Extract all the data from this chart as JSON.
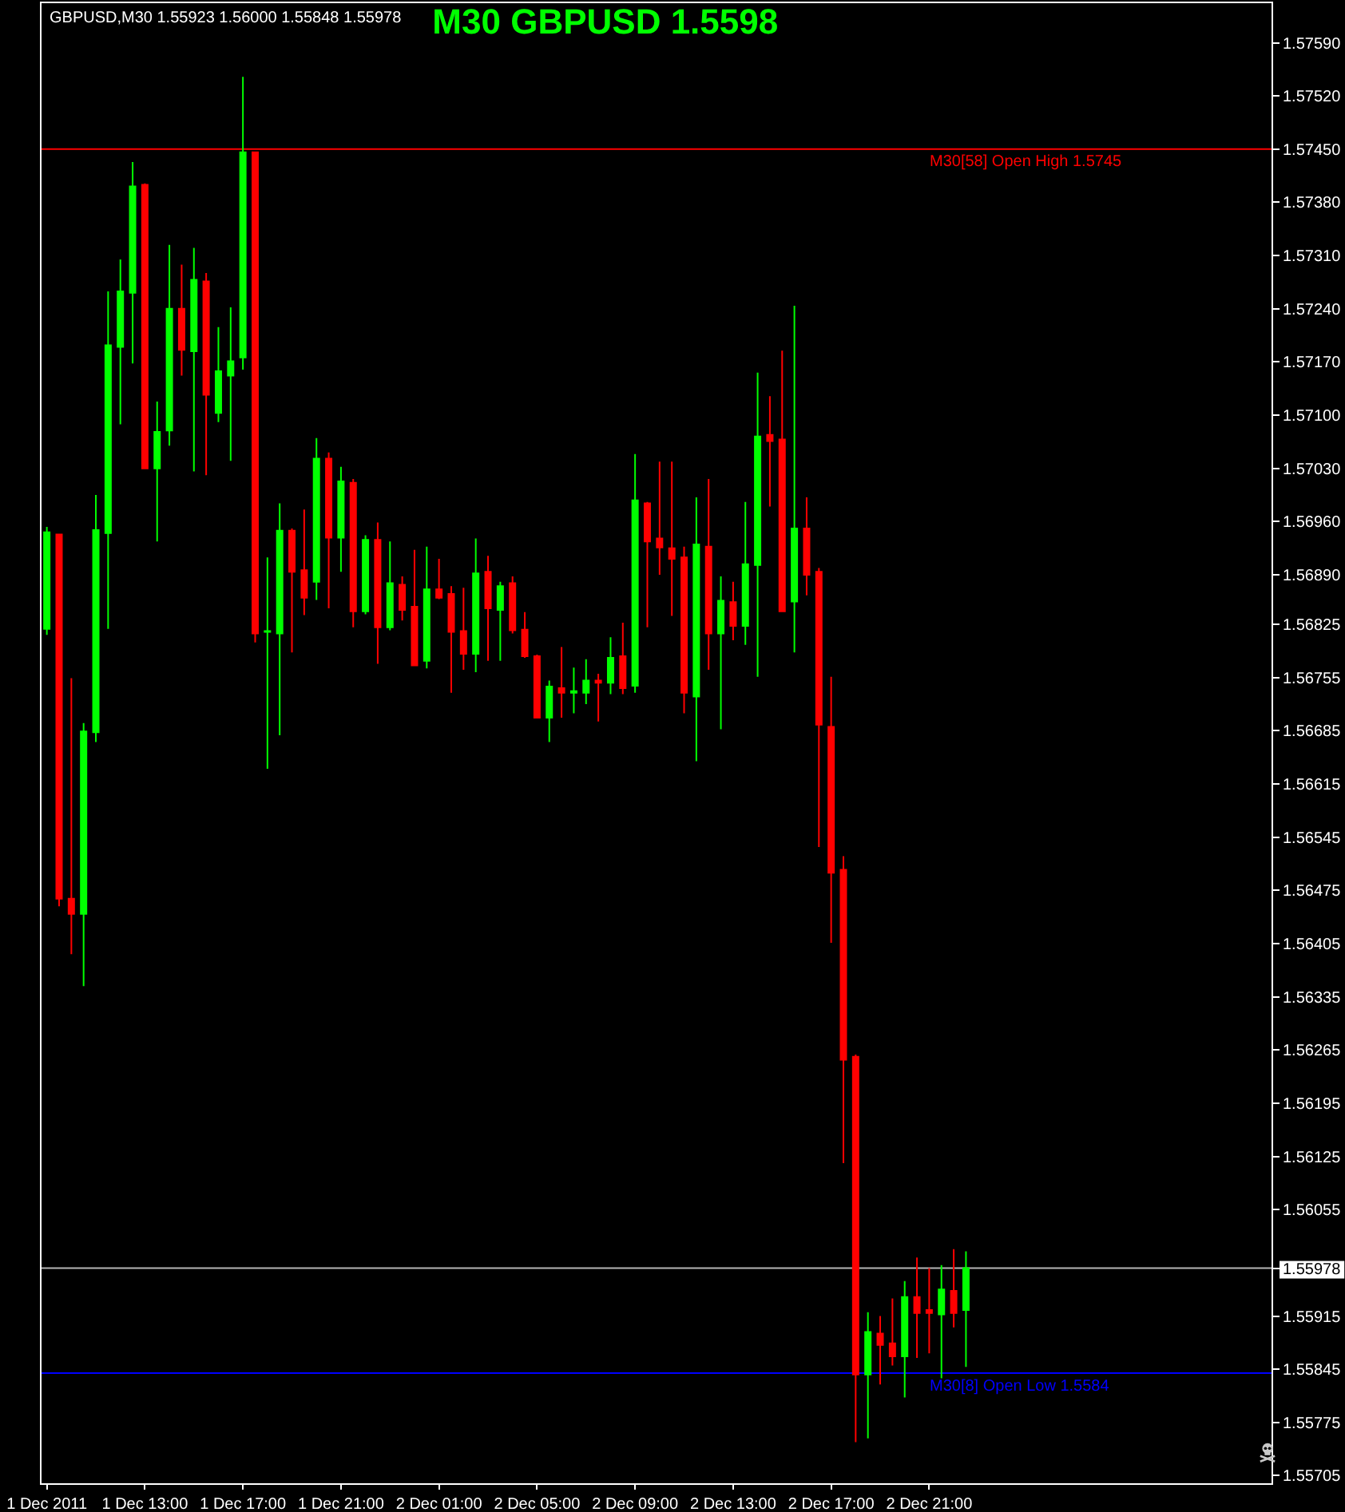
{
  "chart_data": {
    "type": "candlestick",
    "title": "M30 GBPUSD 1.5598",
    "annotations": [
      "GBPUSD,M30 1.55923 1.56000 1.55848 1.55978"
    ],
    "x": [
      "2011-12-01T09:00",
      "2011-12-01T09:30",
      "2011-12-01T10:00",
      "2011-12-01T10:30",
      "2011-12-01T11:00",
      "2011-12-01T11:30",
      "2011-12-01T12:00",
      "2011-12-01T12:30",
      "2011-12-01T13:00",
      "2011-12-01T13:30",
      "2011-12-01T14:00",
      "2011-12-01T14:30",
      "2011-12-01T15:00",
      "2011-12-01T15:30",
      "2011-12-01T16:00",
      "2011-12-01T16:30",
      "2011-12-01T17:00",
      "2011-12-01T17:30",
      "2011-12-01T18:00",
      "2011-12-01T18:30",
      "2011-12-01T19:00",
      "2011-12-01T19:30",
      "2011-12-01T20:00",
      "2011-12-01T20:30",
      "2011-12-01T21:00",
      "2011-12-01T21:30",
      "2011-12-01T22:00",
      "2011-12-01T22:30",
      "2011-12-01T23:00",
      "2011-12-01T23:30",
      "2011-12-02T00:00",
      "2011-12-02T00:30",
      "2011-12-02T01:00",
      "2011-12-02T01:30",
      "2011-12-02T02:00",
      "2011-12-02T02:30",
      "2011-12-02T03:00",
      "2011-12-02T03:30",
      "2011-12-02T04:00",
      "2011-12-02T04:30",
      "2011-12-02T05:00",
      "2011-12-02T05:30",
      "2011-12-02T06:00",
      "2011-12-02T06:30",
      "2011-12-02T07:00",
      "2011-12-02T07:30",
      "2011-12-02T08:00",
      "2011-12-02T08:30",
      "2011-12-02T09:00",
      "2011-12-02T09:30",
      "2011-12-02T10:00",
      "2011-12-02T10:30",
      "2011-12-02T11:00",
      "2011-12-02T11:30",
      "2011-12-02T12:00",
      "2011-12-02T12:30",
      "2011-12-02T13:00",
      "2011-12-02T13:30",
      "2011-12-02T14:00",
      "2011-12-02T14:30",
      "2011-12-02T15:00",
      "2011-12-02T15:30",
      "2011-12-02T16:00",
      "2011-12-02T16:30",
      "2011-12-02T17:00",
      "2011-12-02T17:30",
      "2011-12-02T18:00",
      "2011-12-02T18:30",
      "2011-12-02T19:00",
      "2011-12-02T19:30",
      "2011-12-02T20:00",
      "2011-12-02T20:30",
      "2011-12-02T21:00",
      "2011-12-02T21:30",
      "2011-12-02T22:00",
      "2011-12-02T22:30"
    ],
    "ohlc": [
      [
        1.56819,
        1.56953,
        1.56811,
        1.56946
      ],
      [
        1.56943,
        1.56943,
        1.56454,
        1.56464
      ],
      [
        1.56464,
        1.56754,
        1.56391,
        1.56444
      ],
      [
        1.56444,
        1.56695,
        1.56349,
        1.56684
      ],
      [
        1.56683,
        1.56995,
        1.5667,
        1.56949
      ],
      [
        1.56945,
        1.57263,
        1.56819,
        1.57192
      ],
      [
        1.5719,
        1.57305,
        1.57088,
        1.57263
      ],
      [
        1.57261,
        1.57433,
        1.57168,
        1.57401
      ],
      [
        1.57403,
        1.57405,
        1.57029,
        1.5703
      ],
      [
        1.5703,
        1.57118,
        1.56934,
        1.57078
      ],
      [
        1.5708,
        1.57324,
        1.5706,
        1.5724
      ],
      [
        1.5724,
        1.57298,
        1.57152,
        1.57186
      ],
      [
        1.57184,
        1.5732,
        1.57026,
        1.57278
      ],
      [
        1.57276,
        1.57287,
        1.57021,
        1.57127
      ],
      [
        1.57103,
        1.57216,
        1.57091,
        1.57158
      ],
      [
        1.57152,
        1.57242,
        1.5704,
        1.57171
      ],
      [
        1.57176,
        1.57545,
        1.5716,
        1.57446
      ],
      [
        1.57446,
        1.57446,
        1.56801,
        1.56813
      ],
      [
        1.56815,
        1.56913,
        1.56635,
        1.56816
      ],
      [
        1.56813,
        1.56984,
        1.56679,
        1.56948
      ],
      [
        1.56948,
        1.56951,
        1.56788,
        1.56894
      ],
      [
        1.56896,
        1.56976,
        1.56837,
        1.5686
      ],
      [
        1.56881,
        1.5707,
        1.56857,
        1.57043
      ],
      [
        1.57043,
        1.57051,
        1.56846,
        1.56939
      ],
      [
        1.56939,
        1.57032,
        1.56894,
        1.57013
      ],
      [
        1.57011,
        1.57016,
        1.56821,
        1.56842
      ],
      [
        1.56842,
        1.56942,
        1.56838,
        1.56936
      ],
      [
        1.56936,
        1.56959,
        1.56773,
        1.56821
      ],
      [
        1.56821,
        1.56934,
        1.56817,
        1.56879
      ],
      [
        1.56877,
        1.56888,
        1.5683,
        1.56844
      ],
      [
        1.56848,
        1.56923,
        1.56771,
        1.56771
      ],
      [
        1.56777,
        1.56927,
        1.56767,
        1.56871
      ],
      [
        1.56871,
        1.56911,
        1.56858,
        1.5686
      ],
      [
        1.56865,
        1.56875,
        1.56735,
        1.56815
      ],
      [
        1.56816,
        1.56873,
        1.56765,
        1.56786
      ],
      [
        1.56786,
        1.56938,
        1.56762,
        1.56892
      ],
      [
        1.56894,
        1.56915,
        1.56777,
        1.56846
      ],
      [
        1.56844,
        1.56881,
        1.56777,
        1.56875
      ],
      [
        1.56879,
        1.56888,
        1.56813,
        1.56817
      ],
      [
        1.56818,
        1.56841,
        1.56781,
        1.56783
      ],
      [
        1.56783,
        1.56785,
        1.56702,
        1.56702
      ],
      [
        1.56702,
        1.56751,
        1.5667,
        1.56743
      ],
      [
        1.56741,
        1.56795,
        1.56702,
        1.56735
      ],
      [
        1.56735,
        1.56768,
        1.56708,
        1.56737
      ],
      [
        1.56735,
        1.56779,
        1.5672,
        1.56751
      ],
      [
        1.56751,
        1.5676,
        1.56697,
        1.56748
      ],
      [
        1.56748,
        1.56808,
        1.56733,
        1.56781
      ],
      [
        1.56783,
        1.56827,
        1.56733,
        1.56741
      ],
      [
        1.56744,
        1.57049,
        1.56735,
        1.56988
      ],
      [
        1.56984,
        1.56986,
        1.56821,
        1.56934
      ],
      [
        1.56938,
        1.57039,
        1.5689,
        1.56926
      ],
      [
        1.56925,
        1.57039,
        1.56836,
        1.56911
      ],
      [
        1.56913,
        1.56927,
        1.56708,
        1.56735
      ],
      [
        1.5673,
        1.56992,
        1.56645,
        1.5693
      ],
      [
        1.56927,
        1.57016,
        1.56765,
        1.56813
      ],
      [
        1.56813,
        1.56888,
        1.56687,
        1.56856
      ],
      [
        1.56854,
        1.56881,
        1.56804,
        1.56823
      ],
      [
        1.56823,
        1.56986,
        1.56798,
        1.56904
      ],
      [
        1.56903,
        1.57156,
        1.56756,
        1.57072
      ],
      [
        1.57074,
        1.57125,
        1.5698,
        1.57066
      ],
      [
        1.57068,
        1.57185,
        1.56842,
        1.56842
      ],
      [
        1.56855,
        1.57244,
        1.56788,
        1.56951
      ],
      [
        1.56951,
        1.56992,
        1.56863,
        1.5689
      ],
      [
        1.56894,
        1.56899,
        1.56532,
        1.56693
      ],
      [
        1.5669,
        1.56756,
        1.56406,
        1.56498
      ],
      [
        1.56502,
        1.5652,
        1.56116,
        1.56252
      ],
      [
        1.56256,
        1.56259,
        1.55749,
        1.55838
      ],
      [
        1.55838,
        1.5592,
        1.55754,
        1.55894
      ],
      [
        1.55892,
        1.55915,
        1.55825,
        1.55877
      ],
      [
        1.55879,
        1.55938,
        1.5585,
        1.55862
      ],
      [
        1.55862,
        1.55961,
        1.55808,
        1.5594
      ],
      [
        1.5594,
        1.55992,
        1.5586,
        1.55919
      ],
      [
        1.55923,
        1.55978,
        1.55866,
        1.55919
      ],
      [
        1.55917,
        1.55982,
        1.55833,
        1.5595
      ],
      [
        1.55948,
        1.56003,
        1.559,
        1.55919
      ],
      [
        1.55923,
        1.56,
        1.55848,
        1.55978
      ]
    ],
    "colors": [
      "#00ff00",
      "#ff0000",
      "#ff0000",
      "#00ff00",
      "#00ff00",
      "#00ff00",
      "#00ff00",
      "#00ff00",
      "#ff0000",
      "#00ff00",
      "#00ff00",
      "#ff0000",
      "#00ff00",
      "#ff0000",
      "#00ff00",
      "#00ff00",
      "#00ff00",
      "#ff0000",
      "#00ff00",
      "#00ff00",
      "#ff0000",
      "#ff0000",
      "#00ff00",
      "#ff0000",
      "#00ff00",
      "#ff0000",
      "#00ff00",
      "#ff0000",
      "#00ff00",
      "#ff0000",
      "#ff0000",
      "#00ff00",
      "#ff0000",
      "#ff0000",
      "#ff0000",
      "#00ff00",
      "#ff0000",
      "#00ff00",
      "#ff0000",
      "#ff0000",
      "#ff0000",
      "#00ff00",
      "#ff0000",
      "#00ff00",
      "#00ff00",
      "#ff0000",
      "#00ff00",
      "#ff0000",
      "#00ff00",
      "#ff0000",
      "#ff0000",
      "#ff0000",
      "#ff0000",
      "#00ff00",
      "#ff0000",
      "#00ff00",
      "#ff0000",
      "#00ff00",
      "#00ff00",
      "#ff0000",
      "#ff0000",
      "#00ff00",
      "#ff0000",
      "#ff0000",
      "#ff0000",
      "#ff0000",
      "#ff0000",
      "#00ff00",
      "#ff0000",
      "#ff0000",
      "#00ff00",
      "#ff0000",
      "#ff0000",
      "#00ff00",
      "#ff0000",
      "#00ff00"
    ],
    "xlim": [
      "2011-12-01T08:47",
      "2011-12-03T10:58"
    ],
    "xticks": [
      {
        "value": "2011-12-01T09:00",
        "label": "1 Dec 2011"
      },
      {
        "value": "2011-12-01T13:00",
        "label": "1 Dec 13:00"
      },
      {
        "value": "2011-12-01T17:00",
        "label": "1 Dec 17:00"
      },
      {
        "value": "2011-12-01T21:00",
        "label": "1 Dec 21:00"
      },
      {
        "value": "2011-12-02T01:00",
        "label": "2 Dec 01:00"
      },
      {
        "value": "2011-12-02T05:00",
        "label": "2 Dec 05:00"
      },
      {
        "value": "2011-12-02T09:00",
        "label": "2 Dec 09:00"
      },
      {
        "value": "2011-12-02T13:00",
        "label": "2 Dec 13:00"
      },
      {
        "value": "2011-12-02T17:00",
        "label": "2 Dec 17:00"
      },
      {
        "value": "2011-12-02T21:00",
        "label": "2 Dec 21:00"
      }
    ],
    "ylim": [
      1.55695,
      1.57642
    ],
    "yticks": [
      {
        "value": 1.5759,
        "label": "1.57590"
      },
      {
        "value": 1.5752,
        "label": "1.57520"
      },
      {
        "value": 1.5745,
        "label": "1.57450"
      },
      {
        "value": 1.5738,
        "label": "1.57380"
      },
      {
        "value": 1.5731,
        "label": "1.57310"
      },
      {
        "value": 1.5724,
        "label": "1.57240"
      },
      {
        "value": 1.5717,
        "label": "1.57170"
      },
      {
        "value": 1.571,
        "label": "1.57100"
      },
      {
        "value": 1.5703,
        "label": "1.57030"
      },
      {
        "value": 1.5696,
        "label": "1.56960"
      },
      {
        "value": 1.5689,
        "label": "1.56890"
      },
      {
        "value": 1.56825,
        "label": "1.56825"
      },
      {
        "value": 1.56755,
        "label": "1.56755"
      },
      {
        "value": 1.56685,
        "label": "1.56685"
      },
      {
        "value": 1.56615,
        "label": "1.56615"
      },
      {
        "value": 1.56545,
        "label": "1.56545"
      },
      {
        "value": 1.56475,
        "label": "1.56475"
      },
      {
        "value": 1.56405,
        "label": "1.56405"
      },
      {
        "value": 1.56335,
        "label": "1.56335"
      },
      {
        "value": 1.56265,
        "label": "1.56265"
      },
      {
        "value": 1.56195,
        "label": "1.56195"
      },
      {
        "value": 1.56125,
        "label": "1.56125"
      },
      {
        "value": 1.56055,
        "label": "1.56055"
      },
      {
        "value": 1.55978,
        "label": "1.55978"
      },
      {
        "value": 1.55915,
        "label": "1.55915"
      },
      {
        "value": 1.55845,
        "label": "1.55845"
      },
      {
        "value": 1.55775,
        "label": "1.55775"
      },
      {
        "value": 1.55705,
        "label": "1.55705"
      }
    ],
    "ref_lines": [
      {
        "axis": "y",
        "value": 1.5745,
        "label": "M30[58] Open High 1.5745",
        "color": "#ff0000"
      },
      {
        "axis": "y",
        "value": 1.5584,
        "label": "M30[8] Open Low 1.5584",
        "color": "#0000ff"
      },
      {
        "axis": "y",
        "value": 1.55978,
        "color": "#b4b4b4"
      }
    ]
  }
}
